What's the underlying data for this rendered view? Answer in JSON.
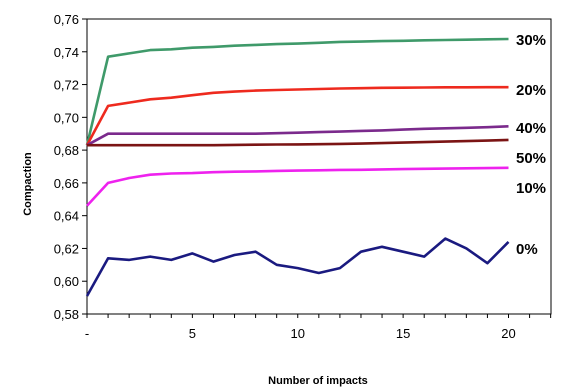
{
  "chart_data": {
    "type": "line",
    "title": "",
    "xlabel": "Number of impacts",
    "ylabel": "Compaction",
    "x": [
      0,
      1,
      2,
      3,
      4,
      5,
      6,
      7,
      8,
      9,
      10,
      11,
      12,
      13,
      14,
      15,
      16,
      17,
      18,
      19,
      20
    ],
    "xlim": [
      0,
      22
    ],
    "ylim": [
      0.58,
      0.76
    ],
    "x_ticks": [
      0,
      5,
      10,
      15,
      20
    ],
    "x_tick_labels": [
      "-",
      "5",
      "10",
      "15",
      "20"
    ],
    "y_ticks": [
      0.58,
      0.6,
      0.62,
      0.64,
      0.66,
      0.68,
      0.7,
      0.72,
      0.74,
      0.76
    ],
    "y_tick_labels": [
      "0,58",
      "0,60",
      "0,62",
      "0,64",
      "0,66",
      "0,68",
      "0,70",
      "0,72",
      "0,74",
      "0,76"
    ],
    "grid": false,
    "legend": "none",
    "series": [
      {
        "name": "30%",
        "color": "#3f9a6a",
        "values": [
          0.683,
          0.737,
          0.739,
          0.741,
          0.7415,
          0.7425,
          0.743,
          0.7437,
          0.7442,
          0.7447,
          0.745,
          0.7455,
          0.746,
          0.7462,
          0.7465,
          0.7467,
          0.747,
          0.7472,
          0.7474,
          0.7476,
          0.7478
        ]
      },
      {
        "name": "20%",
        "color": "#ee2a1e",
        "values": [
          0.683,
          0.707,
          0.709,
          0.711,
          0.712,
          0.7135,
          0.715,
          0.7157,
          0.7163,
          0.7167,
          0.717,
          0.7173,
          0.7176,
          0.7178,
          0.718,
          0.7181,
          0.7182,
          0.7183,
          0.7183,
          0.7184,
          0.7184
        ]
      },
      {
        "name": "40%",
        "color": "#7b2a8c",
        "values": [
          0.683,
          0.69,
          0.69,
          0.69,
          0.69,
          0.69,
          0.69,
          0.69,
          0.69,
          0.6903,
          0.6906,
          0.691,
          0.6913,
          0.6917,
          0.692,
          0.6925,
          0.693,
          0.6933,
          0.6936,
          0.694,
          0.6945
        ]
      },
      {
        "name": "50%",
        "color": "#7b1414",
        "values": [
          0.683,
          0.683,
          0.683,
          0.683,
          0.683,
          0.683,
          0.683,
          0.6832,
          0.6833,
          0.6834,
          0.6835,
          0.6836,
          0.6838,
          0.684,
          0.6843,
          0.6846,
          0.6849,
          0.6852,
          0.6855,
          0.6858,
          0.6862
        ]
      },
      {
        "name": "10%",
        "color": "#ee22ee",
        "values": [
          0.646,
          0.66,
          0.663,
          0.665,
          0.6657,
          0.666,
          0.6665,
          0.6668,
          0.667,
          0.6673,
          0.6675,
          0.6677,
          0.6679,
          0.668,
          0.6682,
          0.6684,
          0.6686,
          0.6687,
          0.6689,
          0.669,
          0.6692
        ]
      },
      {
        "name": "0%",
        "color": "#1a1a80",
        "values": [
          0.591,
          0.614,
          0.613,
          0.615,
          0.613,
          0.617,
          0.612,
          0.616,
          0.618,
          0.61,
          0.608,
          0.605,
          0.608,
          0.618,
          0.621,
          0.618,
          0.615,
          0.626,
          0.62,
          0.611,
          0.624
        ]
      }
    ],
    "series_labels": [
      "30%",
      "20%",
      "40%",
      "50%",
      "10%",
      "0%"
    ]
  }
}
